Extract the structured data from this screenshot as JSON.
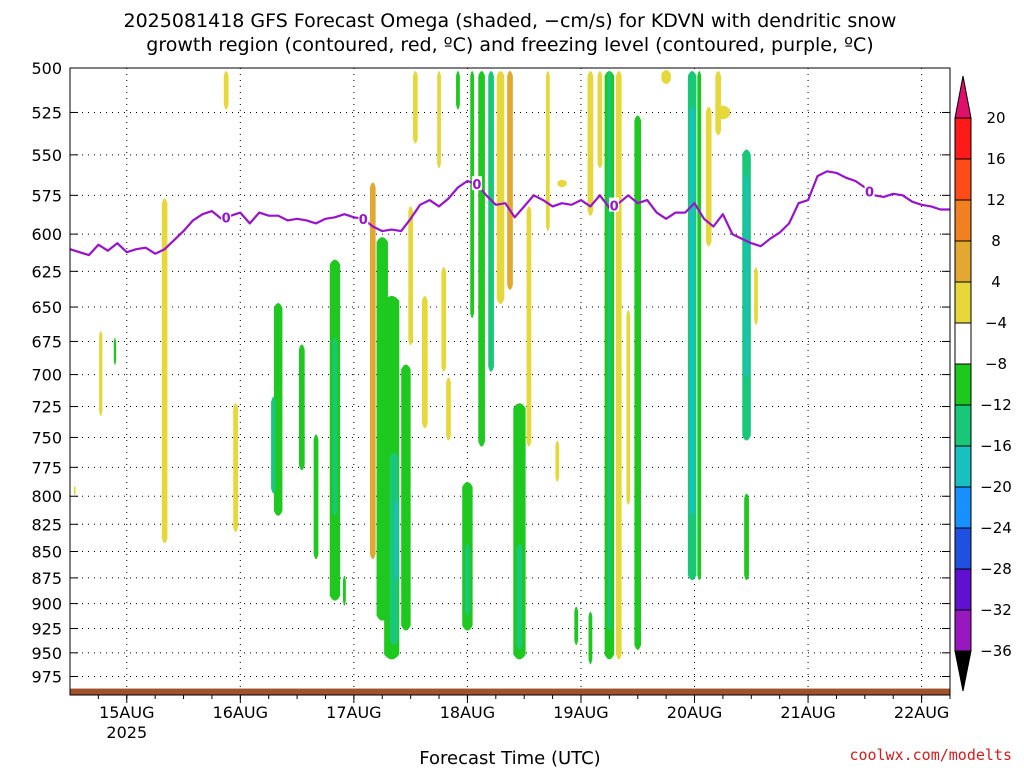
{
  "title": {
    "line1": "2025081418 GFS Forecast Omega (shaded, −cm/s) for KDVN with dendritic snow",
    "line2": "growth region (contoured, red, ºC) and freezing level (contoured, purple, ºC)"
  },
  "credit": "coolwx.com/modelts",
  "chart_data": {
    "type": "heatmap",
    "title": "2025081418 GFS Forecast Omega (shaded, −cm/s) for KDVN with dendritic snow growth region (contoured, red, ºC) and freezing level (contoured, purple, ºC)",
    "xlabel": "Forecast Time (UTC)",
    "ylabel": "",
    "x_unit": "hours since 2025081418",
    "xlim": [
      -6,
      180
    ],
    "ylim": [
      500,
      995
    ],
    "y_scale": "log-pressure (inverted)",
    "grid": true,
    "x_ticks": [
      {
        "h": 6,
        "label": "15AUG",
        "sub": "2025"
      },
      {
        "h": 30,
        "label": "16AUG",
        "sub": ""
      },
      {
        "h": 54,
        "label": "17AUG",
        "sub": ""
      },
      {
        "h": 78,
        "label": "18AUG",
        "sub": ""
      },
      {
        "h": 102,
        "label": "19AUG",
        "sub": ""
      },
      {
        "h": 126,
        "label": "20AUG",
        "sub": ""
      },
      {
        "h": 150,
        "label": "21AUG",
        "sub": ""
      },
      {
        "h": 174,
        "label": "22AUG",
        "sub": ""
      }
    ],
    "y_ticks": [
      500,
      525,
      550,
      575,
      600,
      625,
      650,
      675,
      700,
      725,
      750,
      775,
      800,
      825,
      850,
      875,
      900,
      925,
      950,
      975
    ],
    "colorbar": {
      "labels": [
        "20",
        "16",
        "12",
        "8",
        "4",
        "−4",
        "−8",
        "−12",
        "−16",
        "−20",
        "−24",
        "−28",
        "−32",
        "−36"
      ],
      "colors": [
        "#ff1a1a",
        "#ff4a1a",
        "#f08020",
        "#e2a830",
        "#e6d83a",
        "#ffffff",
        "#1ec81e",
        "#18c878",
        "#18c0c0",
        "#1890ff",
        "#2050e0",
        "#6010d0",
        "#9818c0",
        "#a8a8a8"
      ],
      "top_arrow": "#e0106a",
      "bottom_arrow": "#000000"
    },
    "freezing_level": {
      "color": "#9912cc",
      "label": "0",
      "label_hours": [
        27,
        56,
        80,
        109,
        163
      ],
      "points": [
        [
          -6,
          610
        ],
        [
          -4,
          612
        ],
        [
          -2,
          614
        ],
        [
          0,
          607
        ],
        [
          2,
          611
        ],
        [
          4,
          606
        ],
        [
          6,
          612
        ],
        [
          8,
          610
        ],
        [
          10,
          609
        ],
        [
          12,
          613
        ],
        [
          14,
          610
        ],
        [
          16,
          604
        ],
        [
          18,
          598
        ],
        [
          20,
          591
        ],
        [
          22,
          587
        ],
        [
          24,
          585
        ],
        [
          26,
          590
        ],
        [
          28,
          588
        ],
        [
          30,
          586
        ],
        [
          32,
          593
        ],
        [
          34,
          586
        ],
        [
          36,
          588
        ],
        [
          38,
          588
        ],
        [
          40,
          591
        ],
        [
          42,
          590
        ],
        [
          44,
          591
        ],
        [
          46,
          593
        ],
        [
          48,
          590
        ],
        [
          50,
          589
        ],
        [
          52,
          587
        ],
        [
          54,
          589
        ],
        [
          56,
          590
        ],
        [
          58,
          595
        ],
        [
          60,
          598
        ],
        [
          62,
          597
        ],
        [
          64,
          598
        ],
        [
          66,
          590
        ],
        [
          68,
          581
        ],
        [
          70,
          578
        ],
        [
          72,
          582
        ],
        [
          74,
          577
        ],
        [
          76,
          570
        ],
        [
          78,
          566
        ],
        [
          80,
          568
        ],
        [
          82,
          575
        ],
        [
          84,
          581
        ],
        [
          86,
          580
        ],
        [
          88,
          589
        ],
        [
          90,
          582
        ],
        [
          92,
          575
        ],
        [
          94,
          578
        ],
        [
          96,
          582
        ],
        [
          98,
          580
        ],
        [
          100,
          581
        ],
        [
          102,
          578
        ],
        [
          104,
          582
        ],
        [
          106,
          575
        ],
        [
          108,
          583
        ],
        [
          110,
          580
        ],
        [
          112,
          575
        ],
        [
          114,
          580
        ],
        [
          116,
          578
        ],
        [
          118,
          586
        ],
        [
          120,
          590
        ],
        [
          122,
          586
        ],
        [
          124,
          586
        ],
        [
          126,
          580
        ],
        [
          128,
          590
        ],
        [
          130,
          595
        ],
        [
          132,
          587
        ],
        [
          134,
          600
        ],
        [
          136,
          603
        ],
        [
          138,
          606
        ],
        [
          140,
          608
        ],
        [
          142,
          603
        ],
        [
          144,
          599
        ],
        [
          146,
          593
        ],
        [
          148,
          580
        ],
        [
          150,
          578
        ],
        [
          152,
          563
        ],
        [
          154,
          560
        ],
        [
          156,
          561
        ],
        [
          158,
          564
        ],
        [
          160,
          566
        ],
        [
          162,
          570
        ],
        [
          164,
          575
        ],
        [
          166,
          576
        ],
        [
          168,
          574
        ],
        [
          170,
          575
        ],
        [
          172,
          579
        ],
        [
          174,
          581
        ],
        [
          176,
          582
        ],
        [
          178,
          584
        ],
        [
          180,
          584
        ]
      ]
    },
    "omega_features": [
      {
        "h": 27,
        "p0": 500,
        "p1": 525,
        "half_w": 0.5,
        "color": "#e6d83a"
      },
      {
        "h": 0.5,
        "p0": 665,
        "p1": 735,
        "half_w": 0.35,
        "color": "#e6d83a"
      },
      {
        "h": 3.5,
        "p0": 670,
        "p1": 695,
        "half_w": 0.25,
        "color": "#1ec81e"
      },
      {
        "h": -5,
        "p0": 790,
        "p1": 800,
        "half_w": 0.2,
        "color": "#e6d83a"
      },
      {
        "h": 14,
        "p0": 575,
        "p1": 845,
        "half_w": 0.6,
        "color": "#e6d83a"
      },
      {
        "h": 29,
        "p0": 720,
        "p1": 835,
        "half_w": 0.5,
        "color": "#e6d83a"
      },
      {
        "h": 38,
        "p0": 645,
        "p1": 820,
        "half_w": 0.9,
        "color": "#1ec81e"
      },
      {
        "h": 37,
        "p0": 715,
        "p1": 800,
        "half_w": 0.5,
        "color": "#18c878"
      },
      {
        "h": 43,
        "p0": 675,
        "p1": 780,
        "half_w": 0.6,
        "color": "#1ec81e"
      },
      {
        "h": 46,
        "p0": 745,
        "p1": 860,
        "half_w": 0.5,
        "color": "#1ec81e"
      },
      {
        "h": 50,
        "p0": 615,
        "p1": 900,
        "half_w": 1.1,
        "color": "#1ec81e"
      },
      {
        "h": 50,
        "p0": 670,
        "p1": 820,
        "half_w": 0.5,
        "color": "#18c878"
      },
      {
        "h": 52,
        "p0": 870,
        "p1": 905,
        "half_w": 0.3,
        "color": "#1ec81e"
      },
      {
        "h": 58,
        "p0": 565,
        "p1": 860,
        "half_w": 0.6,
        "color": "#e2a830"
      },
      {
        "h": 60,
        "p0": 600,
        "p1": 920,
        "half_w": 1.2,
        "color": "#1ec81e"
      },
      {
        "h": 62,
        "p0": 640,
        "p1": 960,
        "half_w": 1.6,
        "color": "#1ec81e"
      },
      {
        "h": 62.5,
        "p0": 760,
        "p1": 945,
        "half_w": 0.9,
        "color": "#18c878"
      },
      {
        "h": 63,
        "p0": 800,
        "p1": 880,
        "half_w": 0.4,
        "color": "#18c0c0"
      },
      {
        "h": 65,
        "p0": 690,
        "p1": 930,
        "half_w": 1.0,
        "color": "#1ec81e"
      },
      {
        "h": 66,
        "p0": 580,
        "p1": 680,
        "half_w": 0.5,
        "color": "#e6d83a"
      },
      {
        "h": 67,
        "p0": 500,
        "p1": 545,
        "half_w": 0.5,
        "color": "#e6d83a"
      },
      {
        "h": 69,
        "p0": 640,
        "p1": 745,
        "half_w": 0.6,
        "color": "#e6d83a"
      },
      {
        "h": 72,
        "p0": 500,
        "p1": 560,
        "half_w": 0.4,
        "color": "#e6d83a"
      },
      {
        "h": 73,
        "p0": 620,
        "p1": 700,
        "half_w": 0.5,
        "color": "#e6d83a"
      },
      {
        "h": 74,
        "p0": 700,
        "p1": 755,
        "half_w": 0.5,
        "color": "#e6d83a"
      },
      {
        "h": 76,
        "p0": 500,
        "p1": 525,
        "half_w": 0.4,
        "color": "#1ec81e"
      },
      {
        "h": 78,
        "p0": 785,
        "p1": 930,
        "half_w": 1.1,
        "color": "#1ec81e"
      },
      {
        "h": 78,
        "p0": 840,
        "p1": 915,
        "half_w": 0.5,
        "color": "#18c878"
      },
      {
        "h": 79,
        "p0": 500,
        "p1": 660,
        "half_w": 0.4,
        "color": "#1ec81e"
      },
      {
        "h": 81,
        "p0": 500,
        "p1": 760,
        "half_w": 0.7,
        "color": "#1ec81e"
      },
      {
        "h": 83,
        "p0": 500,
        "p1": 700,
        "half_w": 0.6,
        "color": "#18c878"
      },
      {
        "h": 85,
        "p0": 500,
        "p1": 650,
        "half_w": 0.8,
        "color": "#e6d83a"
      },
      {
        "h": 87,
        "p0": 500,
        "p1": 640,
        "half_w": 0.6,
        "color": "#e2a830"
      },
      {
        "h": 89,
        "p0": 720,
        "p1": 960,
        "half_w": 1.3,
        "color": "#1ec81e"
      },
      {
        "h": 89,
        "p0": 840,
        "p1": 950,
        "half_w": 0.6,
        "color": "#18c878"
      },
      {
        "h": 91,
        "p0": 580,
        "p1": 760,
        "half_w": 0.5,
        "color": "#e6d83a"
      },
      {
        "h": 95,
        "p0": 500,
        "p1": 600,
        "half_w": 0.4,
        "color": "#e6d83a"
      },
      {
        "h": 97,
        "p0": 750,
        "p1": 790,
        "half_w": 0.4,
        "color": "#e6d83a"
      },
      {
        "h": 98,
        "p0": 565,
        "p1": 570,
        "half_w": 1.0,
        "color": "#e6d83a"
      },
      {
        "h": 101,
        "p0": 900,
        "p1": 945,
        "half_w": 0.4,
        "color": "#1ec81e"
      },
      {
        "h": 104,
        "p0": 500,
        "p1": 590,
        "half_w": 0.6,
        "color": "#e6d83a"
      },
      {
        "h": 104,
        "p0": 905,
        "p1": 965,
        "half_w": 0.4,
        "color": "#1ec81e"
      },
      {
        "h": 106,
        "p0": 500,
        "p1": 560,
        "half_w": 0.5,
        "color": "#e6d83a"
      },
      {
        "h": 108,
        "p0": 500,
        "p1": 960,
        "half_w": 1.0,
        "color": "#1ec81e"
      },
      {
        "h": 108,
        "p0": 500,
        "p1": 930,
        "half_w": 0.4,
        "color": "#18c878"
      },
      {
        "h": 110,
        "p0": 500,
        "p1": 960,
        "half_w": 0.6,
        "color": "#e6d83a"
      },
      {
        "h": 114,
        "p0": 525,
        "p1": 950,
        "half_w": 0.7,
        "color": "#1ec81e"
      },
      {
        "h": 112,
        "p0": 650,
        "p1": 810,
        "half_w": 0.4,
        "color": "#e6d83a"
      },
      {
        "h": 120,
        "p0": 500,
        "p1": 510,
        "half_w": 1.0,
        "color": "#e6d83a"
      },
      {
        "h": 125.5,
        "p0": 500,
        "p1": 880,
        "half_w": 0.9,
        "color": "#18c878"
      },
      {
        "h": 125.5,
        "p0": 520,
        "p1": 820,
        "half_w": 0.5,
        "color": "#18c0c0"
      },
      {
        "h": 127,
        "p0": 500,
        "p1": 880,
        "half_w": 0.4,
        "color": "#1ec81e"
      },
      {
        "h": 129,
        "p0": 520,
        "p1": 610,
        "half_w": 0.6,
        "color": "#e6d83a"
      },
      {
        "h": 131,
        "p0": 500,
        "p1": 540,
        "half_w": 0.6,
        "color": "#e6d83a"
      },
      {
        "h": 132,
        "p0": 520,
        "p1": 530,
        "half_w": 1.5,
        "color": "#e6d83a"
      },
      {
        "h": 137,
        "p0": 545,
        "p1": 755,
        "half_w": 0.9,
        "color": "#18c878"
      },
      {
        "h": 137,
        "p0": 560,
        "p1": 705,
        "half_w": 0.4,
        "color": "#18c0c0"
      },
      {
        "h": 137,
        "p0": 795,
        "p1": 880,
        "half_w": 0.5,
        "color": "#1ec81e"
      },
      {
        "h": 139,
        "p0": 620,
        "p1": 665,
        "half_w": 0.4,
        "color": "#e6d83a"
      }
    ],
    "ground_band": {
      "color": "#a0522d",
      "p0": 988,
      "p1": 995
    }
  }
}
